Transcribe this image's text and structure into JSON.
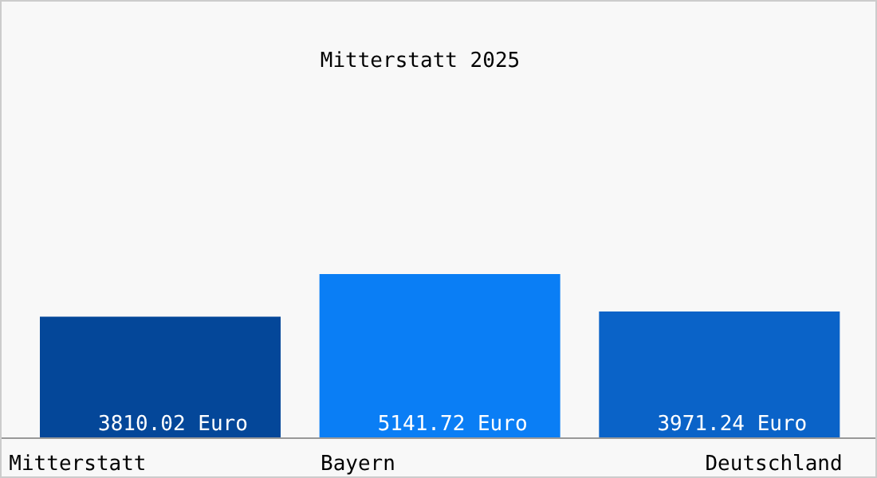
{
  "chart_data": {
    "type": "bar",
    "title": "Mitterstatt 2025",
    "categories": [
      "Mitterstatt",
      "Bayern",
      "Deutschland"
    ],
    "values": [
      3810.02,
      5141.72,
      3971.24
    ],
    "colors": [
      "#044799",
      "#0a7ef5",
      "#0a63c8"
    ],
    "value_labels": [
      "3810.02 Euro",
      "5141.72 Euro",
      "3971.24 Euro"
    ]
  }
}
